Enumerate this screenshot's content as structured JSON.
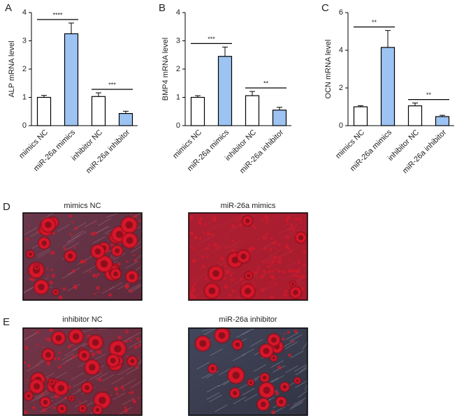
{
  "chart_data": [
    {
      "type": "bar",
      "panel": "A",
      "ylabel": "ALP mRNA level",
      "categories": [
        "mimics NC",
        "miR-26a mimics",
        "inhibitor NC",
        "miR-26a inhibitor"
      ],
      "values": [
        1.0,
        3.25,
        1.03,
        0.43
      ],
      "errors": [
        0.07,
        0.38,
        0.13,
        0.08
      ],
      "colors": [
        "#ffffff",
        "#9cc3f2",
        "#ffffff",
        "#9cc3f2"
      ],
      "ylim": [
        0,
        4
      ],
      "yticks": [
        0,
        1,
        2,
        3,
        4
      ],
      "annotations": [
        "****",
        "***"
      ]
    },
    {
      "type": "bar",
      "panel": "B",
      "ylabel": "BMP4 mRNA level",
      "categories": [
        "mimics NC",
        "miR-26a mimics",
        "inhibitor NC",
        "miR-26a inhibitor"
      ],
      "values": [
        1.0,
        2.45,
        1.06,
        0.55
      ],
      "errors": [
        0.06,
        0.33,
        0.15,
        0.1
      ],
      "colors": [
        "#ffffff",
        "#9cc3f2",
        "#ffffff",
        "#9cc3f2"
      ],
      "ylim": [
        0,
        4
      ],
      "yticks": [
        0,
        1,
        2,
        3,
        4
      ],
      "annotations": [
        "***",
        "**"
      ]
    },
    {
      "type": "bar",
      "panel": "C",
      "ylabel": "OCN mRNA level",
      "categories": [
        "mimics NC",
        "miR-26a mimics",
        "inhibitor NC",
        "miR-26a inhibitor"
      ],
      "values": [
        1.0,
        4.15,
        1.05,
        0.48
      ],
      "errors": [
        0.06,
        0.9,
        0.15,
        0.07
      ],
      "colors": [
        "#ffffff",
        "#9cc3f2",
        "#ffffff",
        "#9cc3f2"
      ],
      "ylim": [
        0,
        6
      ],
      "yticks": [
        0,
        2,
        4,
        6
      ],
      "annotations": [
        "**",
        "**"
      ]
    }
  ],
  "images": [
    {
      "label": "D",
      "titles": [
        "mimics NC",
        "miR-26a mimics"
      ]
    },
    {
      "label": "E",
      "titles": [
        "inhibitor NC",
        "miR-26a inhibitor"
      ]
    }
  ]
}
